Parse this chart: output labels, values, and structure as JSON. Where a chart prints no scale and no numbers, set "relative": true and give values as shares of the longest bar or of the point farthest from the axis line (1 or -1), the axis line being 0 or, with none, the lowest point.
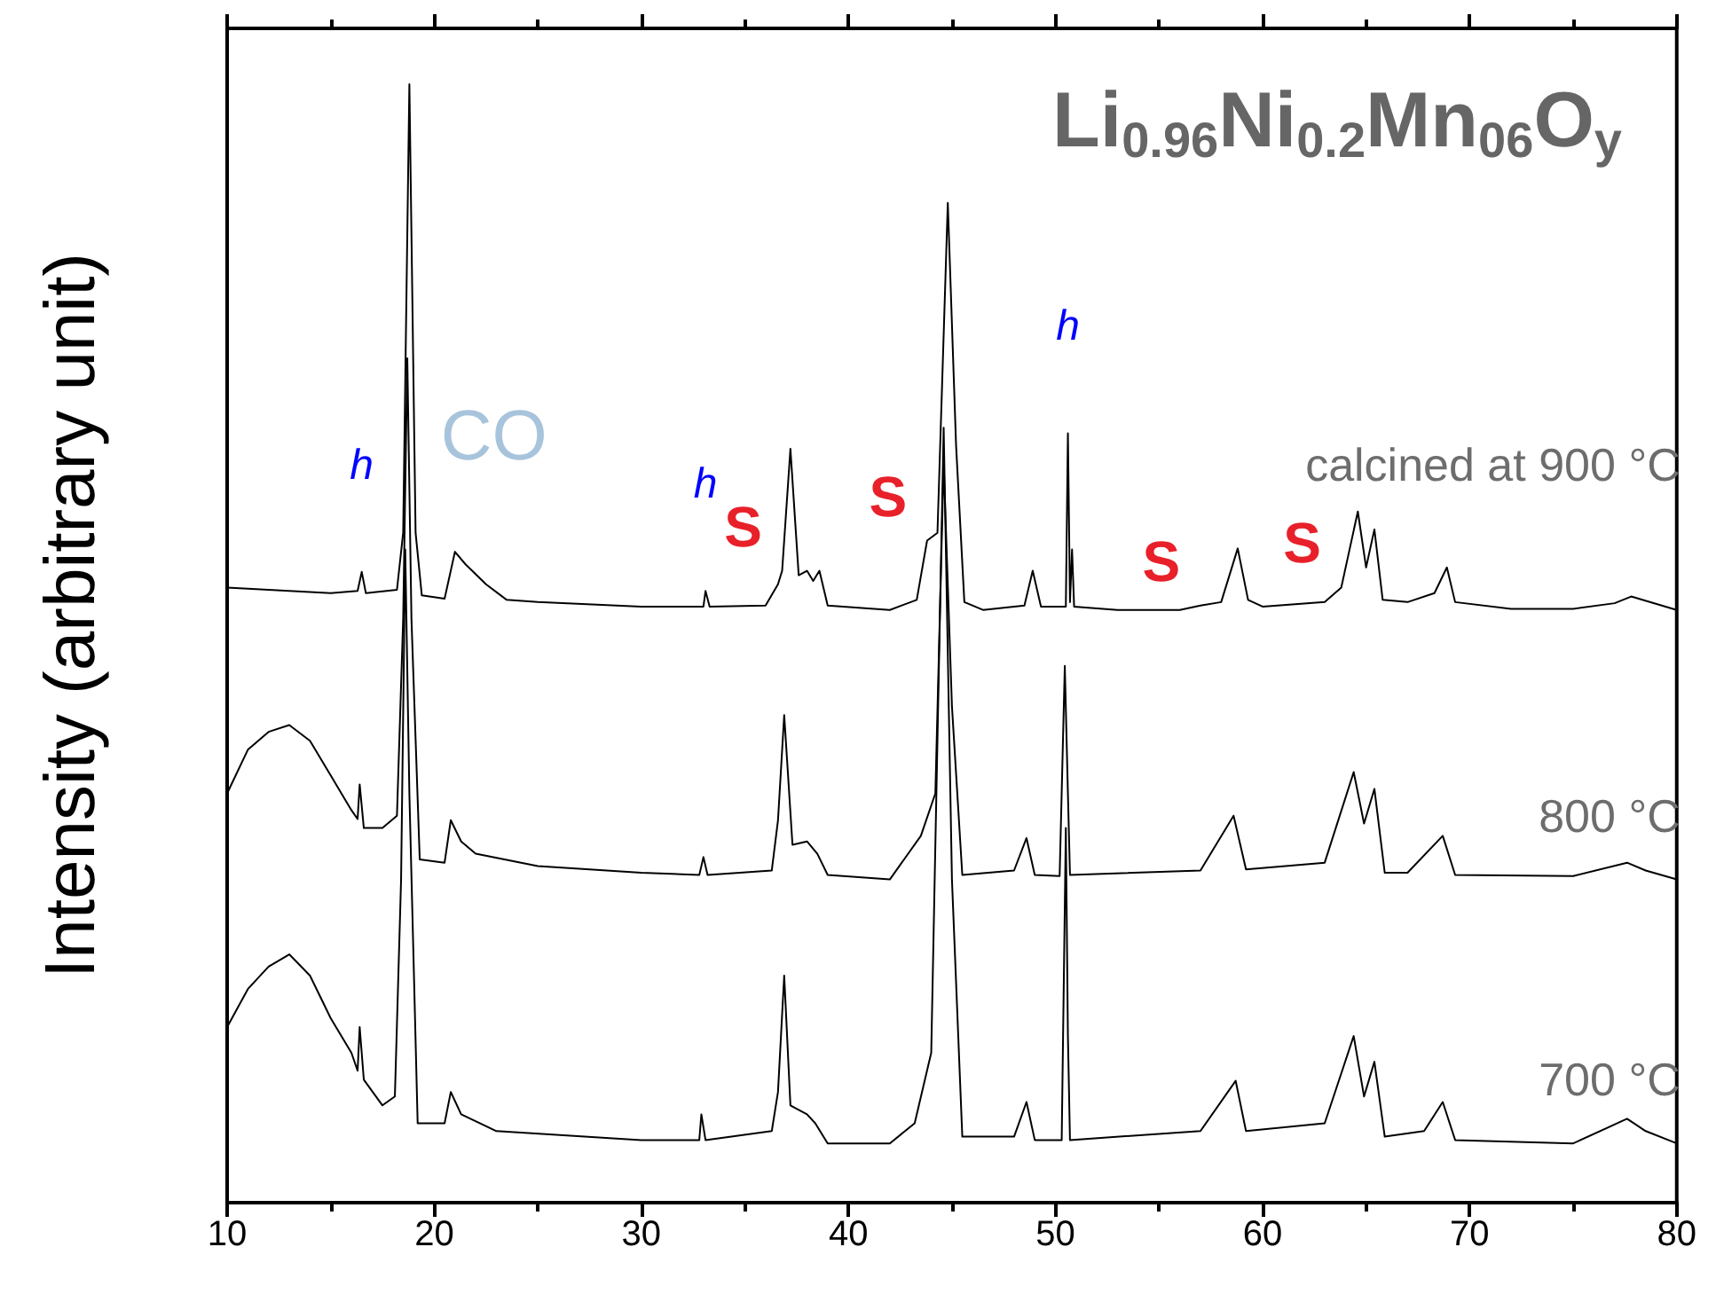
{
  "chart_data": {
    "type": "line",
    "relative": true,
    "title": "Li$_{0.96}$Ni$_{0.2}$Mn$_{06}$O$_{y}$",
    "ylabel": "Intensity (arbitrary unit)",
    "xlim": [
      10,
      80
    ],
    "xticks": [
      10,
      20,
      30,
      40,
      50,
      60,
      70,
      80
    ],
    "tick_labels": "x",
    "grid": false,
    "legend": false,
    "marker": "none",
    "line_style": "solid",
    "series": [
      {
        "name": "calcined at 900 °C",
        "color": "#000000",
        "x": [
          10,
          12,
          15,
          16.3,
          16.5,
          16.7,
          18.2,
          18.5,
          18.8,
          19.1,
          19.4,
          20.5,
          21.0,
          21.5,
          22.5,
          23.5,
          25,
          30,
          33,
          33.1,
          33.3,
          36,
          36.6,
          36.8,
          37.2,
          37.6,
          38,
          38.3,
          38.6,
          39,
          42,
          43.3,
          43.8,
          44.3,
          44.8,
          45.2,
          45.6,
          46.5,
          48.5,
          48.9,
          49.3,
          50.5,
          50.6,
          50.7,
          50.8,
          50.9,
          53,
          56,
          57,
          58,
          58.8,
          59.3,
          60,
          63,
          63.8,
          64.2,
          64.6,
          65.0,
          65.4,
          65.8,
          67,
          68.3,
          68.9,
          69.3,
          72,
          75,
          77,
          77.8,
          80
        ],
        "values": [
          0.55,
          0.548,
          0.545,
          0.547,
          0.564,
          0.545,
          0.548,
          0.599,
          1.0,
          0.599,
          0.543,
          0.54,
          0.582,
          0.571,
          0.553,
          0.539,
          0.537,
          0.533,
          0.533,
          0.547,
          0.533,
          0.534,
          0.553,
          0.565,
          0.674,
          0.561,
          0.565,
          0.556,
          0.565,
          0.534,
          0.53,
          0.539,
          0.592,
          0.599,
          0.894,
          0.677,
          0.537,
          0.53,
          0.534,
          0.565,
          0.533,
          0.533,
          0.688,
          0.537,
          0.584,
          0.533,
          0.53,
          0.53,
          0.534,
          0.537,
          0.585,
          0.539,
          0.533,
          0.537,
          0.55,
          0.584,
          0.618,
          0.568,
          0.602,
          0.539,
          0.537,
          0.545,
          0.568,
          0.537,
          0.531,
          0.531,
          0.536,
          0.542,
          0.53
        ]
      },
      {
        "name": "800 °C",
        "color": "#000000",
        "x": [
          10,
          11,
          12,
          13,
          14,
          15,
          16,
          16.3,
          16.4,
          16.6,
          17.5,
          18.2,
          18.5,
          18.7,
          18.9,
          19.3,
          20.5,
          20.8,
          21.3,
          22,
          25,
          30,
          32.8,
          33.0,
          33.2,
          36.3,
          36.6,
          36.9,
          37.3,
          38,
          38.5,
          39,
          42,
          43.5,
          44.2,
          44.6,
          45.0,
          45.5,
          48,
          48.6,
          49,
          50.2,
          50.45,
          50.6,
          50.7,
          57,
          58.6,
          59.2,
          63,
          64.4,
          64.9,
          65.4,
          65.9,
          67,
          68.7,
          69.3,
          75,
          77.6,
          78.5,
          80
        ],
        "values": [
          0.366,
          0.405,
          0.421,
          0.427,
          0.413,
          0.382,
          0.351,
          0.343,
          0.374,
          0.335,
          0.335,
          0.346,
          0.522,
          0.755,
          0.522,
          0.307,
          0.304,
          0.342,
          0.323,
          0.312,
          0.301,
          0.295,
          0.293,
          0.309,
          0.293,
          0.297,
          0.342,
          0.436,
          0.32,
          0.323,
          0.312,
          0.293,
          0.289,
          0.328,
          0.366,
          0.661,
          0.444,
          0.293,
          0.297,
          0.326,
          0.293,
          0.292,
          0.48,
          0.366,
          0.293,
          0.297,
          0.346,
          0.298,
          0.304,
          0.385,
          0.339,
          0.37,
          0.295,
          0.295,
          0.328,
          0.293,
          0.292,
          0.304,
          0.297,
          0.289
        ]
      },
      {
        "name": "700 °C",
        "color": "#000000",
        "x": [
          10,
          11,
          12,
          13,
          14,
          15,
          16,
          16.3,
          16.4,
          16.6,
          17.5,
          18.1,
          18.4,
          18.6,
          18.8,
          19.2,
          20.5,
          20.8,
          21.3,
          23,
          30,
          32.8,
          32.9,
          33.1,
          36.3,
          36.6,
          36.9,
          37.2,
          38,
          38.4,
          39,
          42,
          43.2,
          44.0,
          44.6,
          45.0,
          45.5,
          48,
          48.6,
          49,
          50.3,
          50.5,
          50.6,
          50.7,
          57,
          58.7,
          59.2,
          63,
          64.4,
          64.9,
          65.4,
          65.9,
          67.8,
          68.7,
          69.3,
          75,
          77.6,
          78.5,
          80
        ],
        "values": [
          0.157,
          0.191,
          0.211,
          0.222,
          0.203,
          0.165,
          0.134,
          0.118,
          0.157,
          0.11,
          0.087,
          0.095,
          0.289,
          0.584,
          0.366,
          0.071,
          0.071,
          0.099,
          0.079,
          0.064,
          0.056,
          0.056,
          0.079,
          0.056,
          0.064,
          0.099,
          0.203,
          0.087,
          0.079,
          0.071,
          0.053,
          0.053,
          0.071,
          0.134,
          0.693,
          0.289,
          0.059,
          0.059,
          0.09,
          0.056,
          0.056,
          0.335,
          0.149,
          0.056,
          0.064,
          0.109,
          0.064,
          0.071,
          0.149,
          0.095,
          0.126,
          0.059,
          0.064,
          0.09,
          0.056,
          0.053,
          0.075,
          0.064,
          0.053
        ]
      }
    ],
    "annotations": [
      {
        "text": "h",
        "x": 16.5,
        "y": 0.564
      },
      {
        "text": "CO",
        "x": 21.0,
        "y": 0.582
      },
      {
        "text": "h",
        "x": 33.1,
        "y": 0.547
      },
      {
        "text": "S",
        "x": 36.8,
        "y": 0.565
      },
      {
        "text": "S",
        "x": 43.8,
        "y": 0.592
      },
      {
        "text": "h",
        "x": 50.6,
        "y": 0.688
      },
      {
        "text": "S",
        "x": 57,
        "y": 0.534
      },
      {
        "text": "S",
        "x": 63.8,
        "y": 0.55
      }
    ]
  }
}
